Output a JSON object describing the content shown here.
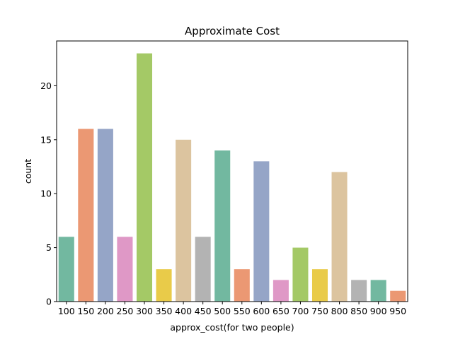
{
  "chart_data": {
    "type": "bar",
    "title": "Approximate Cost",
    "xlabel": "approx_cost(for two people)",
    "ylabel": "count",
    "categories": [
      "100",
      "150",
      "200",
      "250",
      "300",
      "350",
      "400",
      "450",
      "500",
      "550",
      "600",
      "650",
      "700",
      "750",
      "800",
      "850",
      "900",
      "950"
    ],
    "values": [
      6,
      16,
      16,
      6,
      23,
      3,
      15,
      6,
      14,
      3,
      13,
      2,
      5,
      3,
      12,
      2,
      2,
      1
    ],
    "ylim": [
      0,
      24.15
    ],
    "yticks": [
      0,
      5,
      10,
      15,
      20
    ],
    "grid": false,
    "legend": "none",
    "palette": [
      "#72b8a0",
      "#eb9873",
      "#95a5c7",
      "#df98c6",
      "#a4c966",
      "#e9cb49",
      "#dcc49f",
      "#b3b3b3"
    ]
  }
}
